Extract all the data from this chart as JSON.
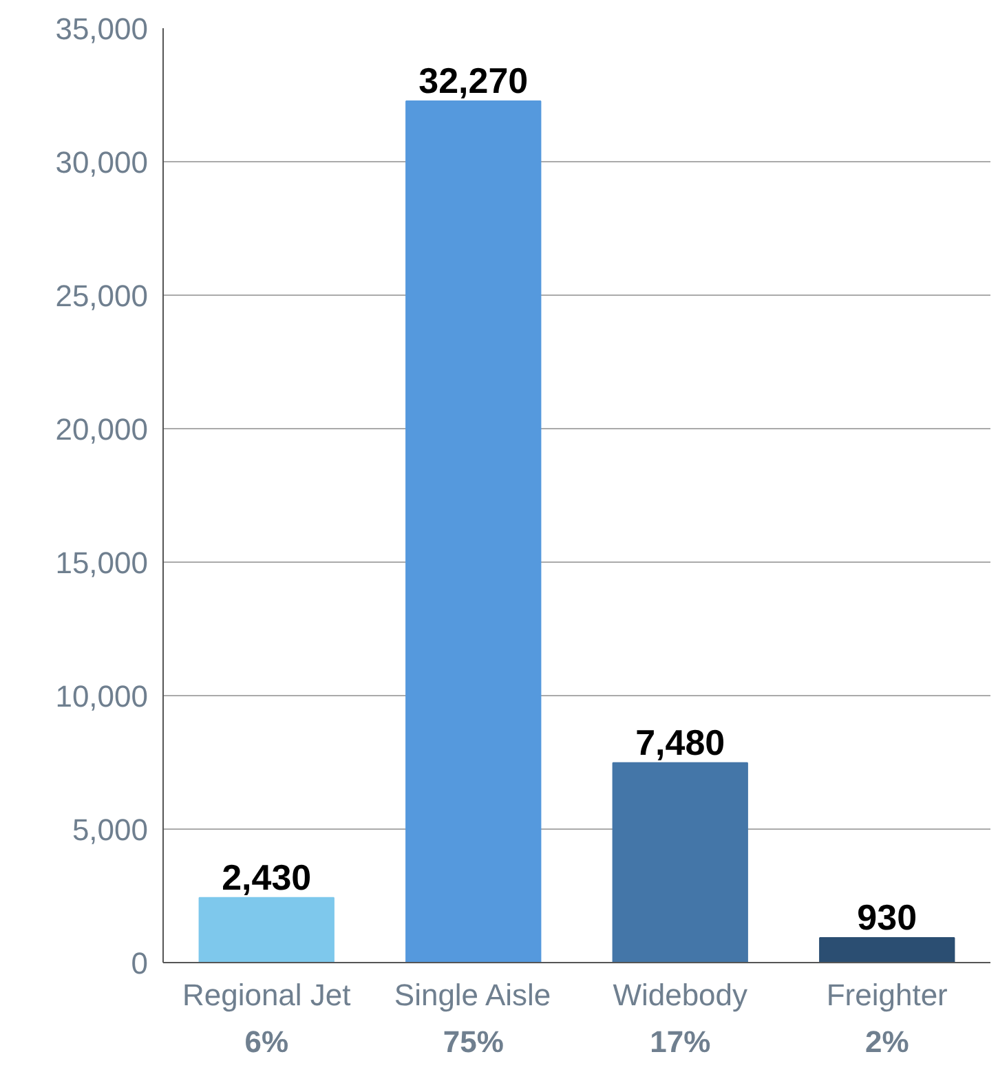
{
  "chart_data": {
    "type": "bar",
    "categories": [
      "Regional Jet",
      "Single Aisle",
      "Widebody",
      "Freighter"
    ],
    "values": [
      2430,
      32270,
      7480,
      930
    ],
    "value_labels": [
      "2,430",
      "32,270",
      "7,480",
      "930"
    ],
    "colors": [
      "#7ec8ec",
      "#5599dd",
      "#4476a8",
      "#2b4e72"
    ],
    "ylim": [
      0,
      35000
    ],
    "yticks": [
      {
        "value": 0,
        "label": "0"
      },
      {
        "value": 5000,
        "label": "5,000"
      },
      {
        "value": 10000,
        "label": "10,000"
      },
      {
        "value": 15000,
        "label": "15,000"
      },
      {
        "value": 20000,
        "label": "20,000"
      },
      {
        "value": 25000,
        "label": "25,000"
      },
      {
        "value": 30000,
        "label": "30,000"
      },
      {
        "value": 35000,
        "label": "35,000"
      }
    ],
    "grid": "y",
    "annotations": [
      "6%",
      "75%",
      "17%",
      "2%"
    ]
  }
}
